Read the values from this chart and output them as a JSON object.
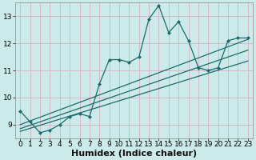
{
  "xlabel": "Humidex (Indice chaleur)",
  "bg_color": "#cceaea",
  "grid_color": "#d4b8c8",
  "line_color": "#1a6b6b",
  "xlim": [
    -0.5,
    23.5
  ],
  "ylim": [
    8.5,
    13.5
  ],
  "xticks": [
    0,
    1,
    2,
    3,
    4,
    5,
    6,
    7,
    8,
    9,
    10,
    11,
    12,
    13,
    14,
    15,
    16,
    17,
    18,
    19,
    20,
    21,
    22,
    23
  ],
  "yticks": [
    9,
    10,
    11,
    12,
    13
  ],
  "main_x": [
    0,
    1,
    2,
    3,
    4,
    5,
    6,
    7,
    8,
    9,
    10,
    11,
    12,
    13,
    14,
    15,
    16,
    17,
    18,
    19,
    20,
    21,
    22,
    23
  ],
  "main_y": [
    9.5,
    9.1,
    8.7,
    8.8,
    9.0,
    9.3,
    9.4,
    9.3,
    10.5,
    11.4,
    11.4,
    11.3,
    11.5,
    12.9,
    13.4,
    12.4,
    12.8,
    12.1,
    11.1,
    11.0,
    11.1,
    12.1,
    12.2,
    12.2
  ],
  "line1_x": [
    0,
    23
  ],
  "line1_y": [
    9.0,
    12.15
  ],
  "line2_x": [
    0,
    23
  ],
  "line2_y": [
    8.85,
    11.75
  ],
  "line3_x": [
    0,
    23
  ],
  "line3_y": [
    8.75,
    11.35
  ],
  "tick_fontsize": 6.5,
  "xlabel_fontsize": 8
}
